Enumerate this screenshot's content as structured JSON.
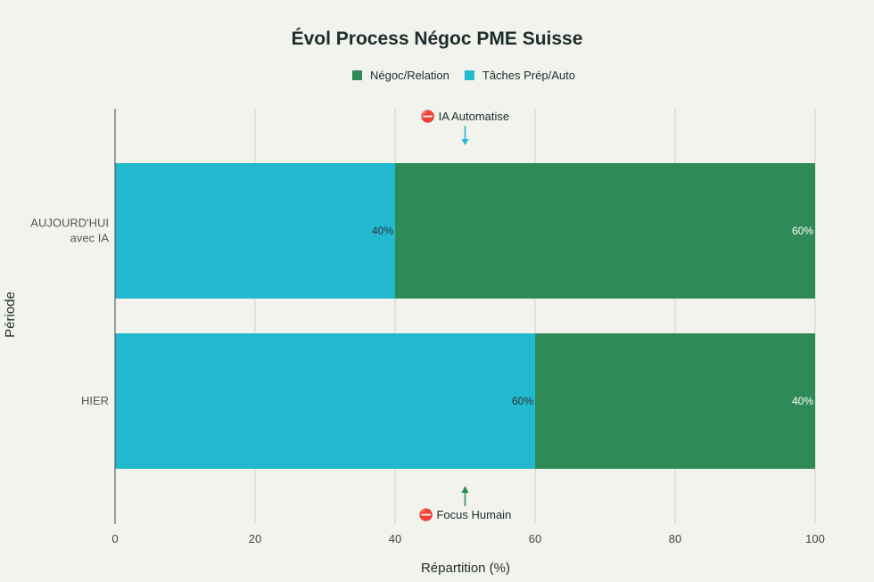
{
  "chart_data": {
    "type": "bar",
    "orientation": "horizontal",
    "stacked": true,
    "title": "Évol Process Négoc PME Suisse",
    "xlabel": "Répartition (%)",
    "ylabel": "Période",
    "xlim": [
      0,
      100
    ],
    "xticks": [
      0,
      20,
      40,
      60,
      80,
      100
    ],
    "grid": true,
    "legend_position": "top",
    "categories": [
      {
        "lines": [
          "HIER"
        ]
      },
      {
        "lines": [
          "AUJOURD'HUI",
          "avec IA"
        ]
      }
    ],
    "series": [
      {
        "name": "Tâches Prép/Auto",
        "color": "#22b8cd",
        "values": [
          60,
          40
        ],
        "labels": [
          "60%",
          "40%"
        ],
        "label_color": "#333333"
      },
      {
        "name": "Négoc/Relation",
        "color": "#2e8b57",
        "values": [
          40,
          60
        ],
        "labels": [
          "40%",
          "60%"
        ],
        "label_color": "#ffffff"
      }
    ],
    "legend_order": [
      "Négoc/Relation",
      "Tâches Prép/Auto"
    ],
    "annotations": [
      {
        "text": "⛔ IA Automatise",
        "x": 50,
        "arrow": "down",
        "color": "#22b8cd",
        "near": "AUJOURD'HUI"
      },
      {
        "text": "⛔ Focus Humain",
        "x": 50,
        "arrow": "up",
        "color": "#2e8b57",
        "near": "HIER"
      }
    ]
  }
}
